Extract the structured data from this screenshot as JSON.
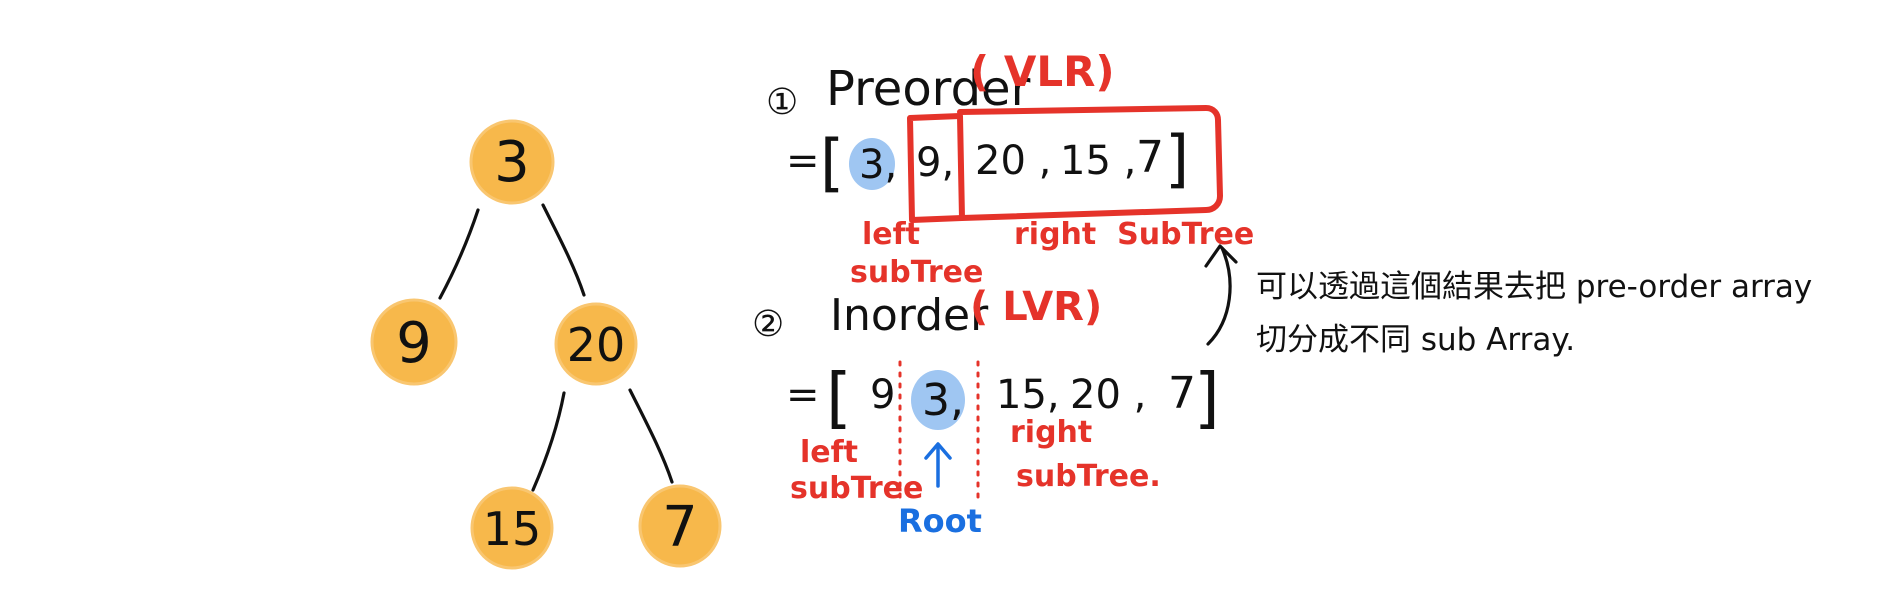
{
  "colors": {
    "node_fill": "#f7b84b",
    "node_stroke": "#f3a93a",
    "ink": "#111111",
    "accent_red": "#e5332a",
    "accent_blue": "#1a6fe0",
    "highlight_blue": "#9fc6f2",
    "background": "#ffffff"
  },
  "tree": {
    "nodes": [
      {
        "id": "n3",
        "label": "3"
      },
      {
        "id": "n9",
        "label": "9"
      },
      {
        "id": "n20",
        "label": "20"
      },
      {
        "id": "n15",
        "label": "15"
      },
      {
        "id": "n7",
        "label": "7"
      }
    ],
    "edges": [
      {
        "from": "3",
        "to": "9"
      },
      {
        "from": "3",
        "to": "20"
      },
      {
        "from": "20",
        "to": "15"
      },
      {
        "from": "20",
        "to": "7"
      }
    ]
  },
  "preorder": {
    "number": "①",
    "title": "Preorder",
    "order_code": "( VLR)",
    "equals": "=",
    "open_bracket": "[",
    "close_bracket": "]",
    "values": [
      "3,",
      "9,",
      "20 ,",
      "15 ,",
      "7"
    ],
    "left_label_line1": "left",
    "left_label_line2": "subTree",
    "right_label": "right  SubTree"
  },
  "inorder": {
    "number": "②",
    "title": "Inorder",
    "order_code": "( LVR)",
    "equals": "=",
    "open_bracket": "[",
    "close_bracket": "]",
    "values": [
      "9",
      "3,",
      "15,",
      "20 ,",
      "7"
    ],
    "left_label_line1": "left",
    "left_label_line2": "subTree",
    "root_label": "Root",
    "right_label_line1": "right",
    "right_label_line2": "subTree."
  },
  "note": {
    "line1": "可以透過這個結果去把 pre-order array",
    "line2": "切分成不同 sub Array."
  }
}
